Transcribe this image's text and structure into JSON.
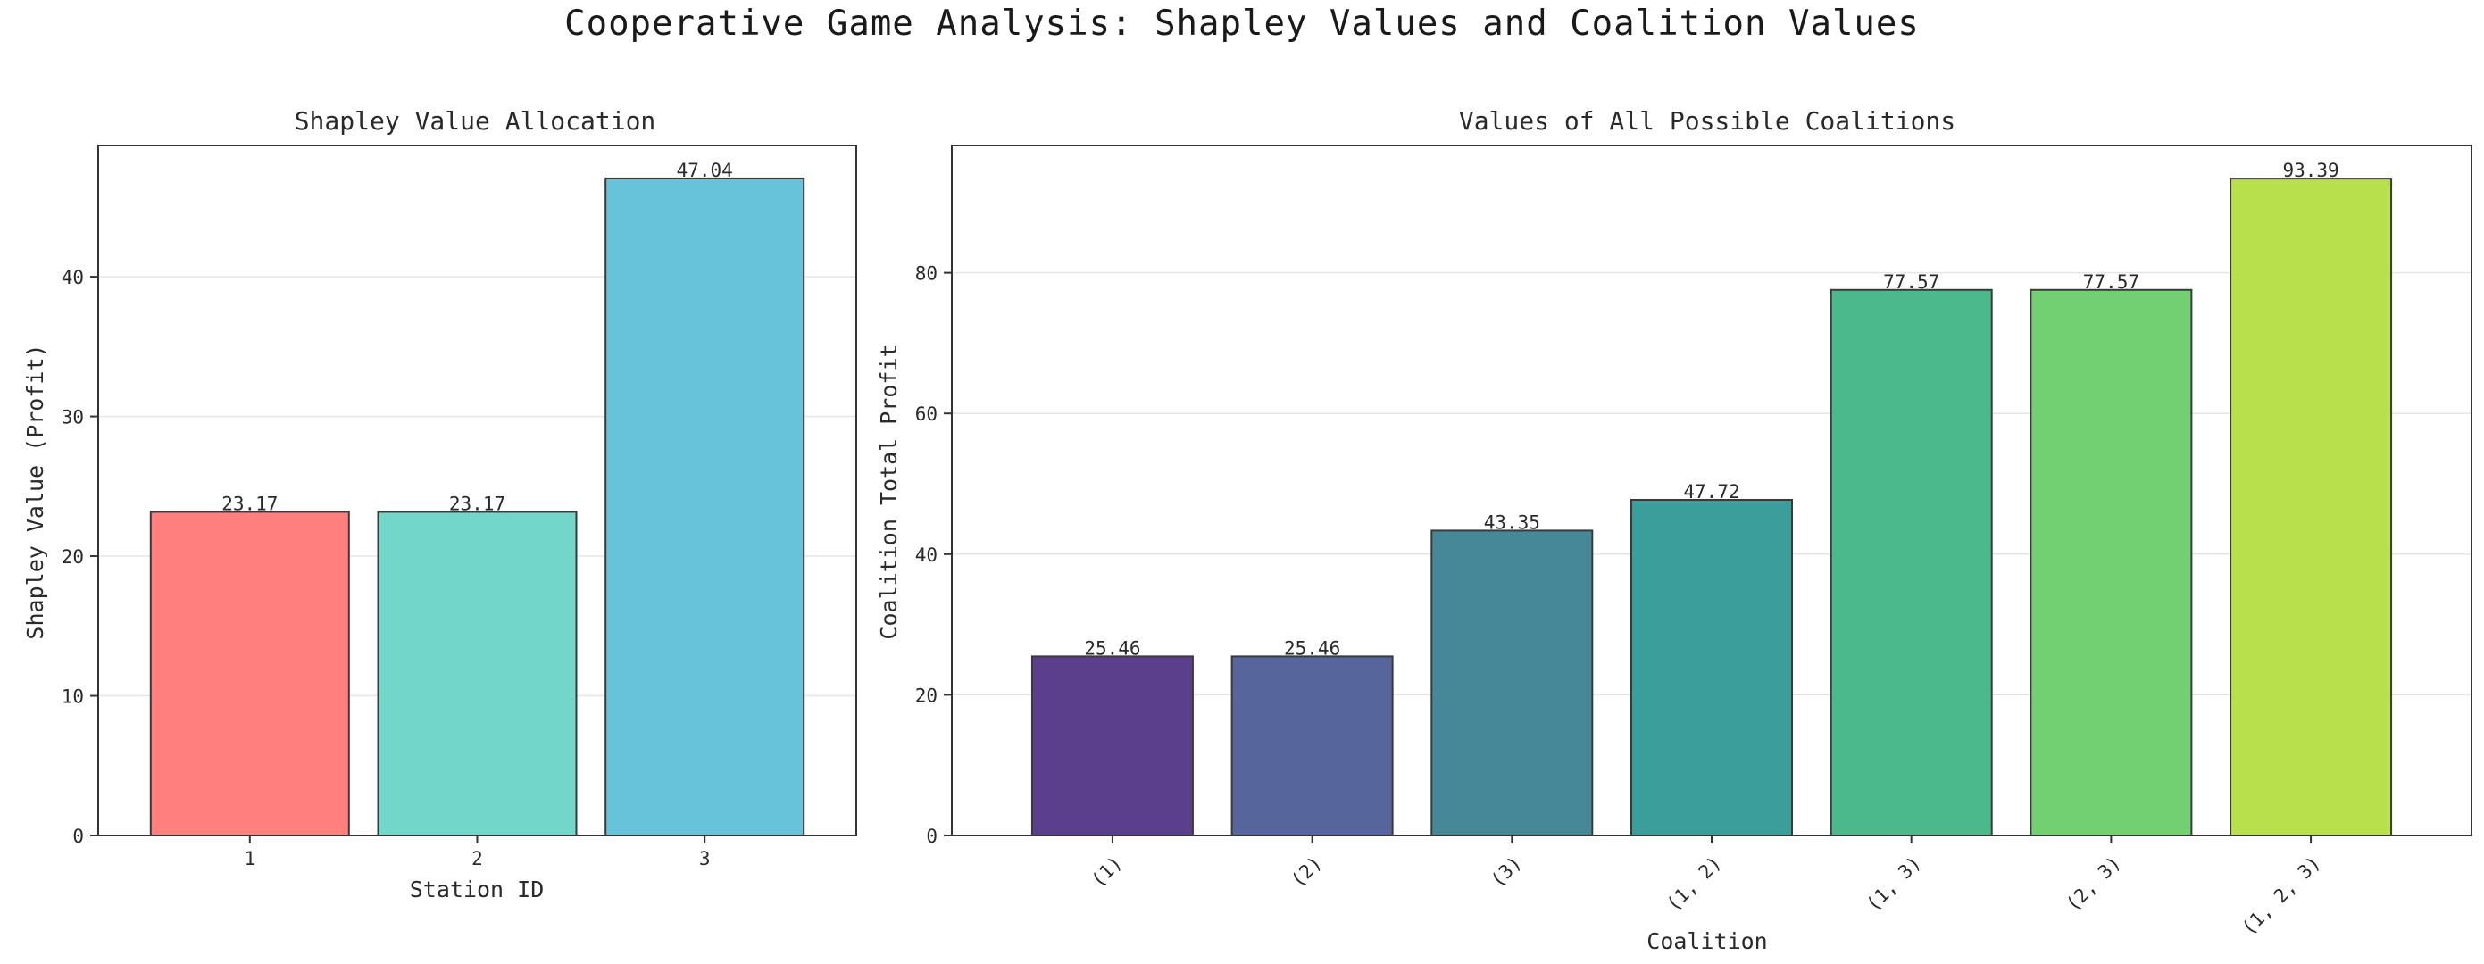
{
  "figure_title": "Cooperative Game Analysis: Shapley Values and Coalition Values",
  "chart_data": [
    {
      "type": "bar",
      "title": "Shapley Value Allocation",
      "xlabel": "Station ID",
      "ylabel": "Shapley Value (Profit)",
      "categories": [
        "1",
        "2",
        "3"
      ],
      "values": [
        23.17,
        23.17,
        47.04
      ],
      "data_labels": [
        "23.17",
        "23.17",
        "47.04"
      ],
      "colors": [
        "#FF7F7F",
        "#72D6CB",
        "#66C3D9"
      ],
      "ylim": [
        0,
        49.4
      ],
      "yticks": [
        0,
        10,
        20,
        30,
        40
      ],
      "grid": "horizontal"
    },
    {
      "type": "bar",
      "title": "Values of All Possible Coalitions",
      "xlabel": "Coalition",
      "ylabel": "Coalition Total Profit",
      "categories": [
        "(1)",
        "(2)",
        "(3)",
        "(1, 2)",
        "(1, 3)",
        "(2, 3)",
        "(1, 2, 3)"
      ],
      "values": [
        25.46,
        25.46,
        43.35,
        47.72,
        77.57,
        77.57,
        93.39
      ],
      "data_labels": [
        "25.46",
        "25.46",
        "43.35",
        "47.72",
        "77.57",
        "77.57",
        "93.39"
      ],
      "colors": [
        "#5C3F8C",
        "#56659B",
        "#478898",
        "#3A9E9A",
        "#4CB98D",
        "#72CF72",
        "#B8E04A"
      ],
      "ylim": [
        0,
        98.1
      ],
      "yticks": [
        0,
        20,
        40,
        60,
        80
      ],
      "grid": "horizontal"
    }
  ]
}
